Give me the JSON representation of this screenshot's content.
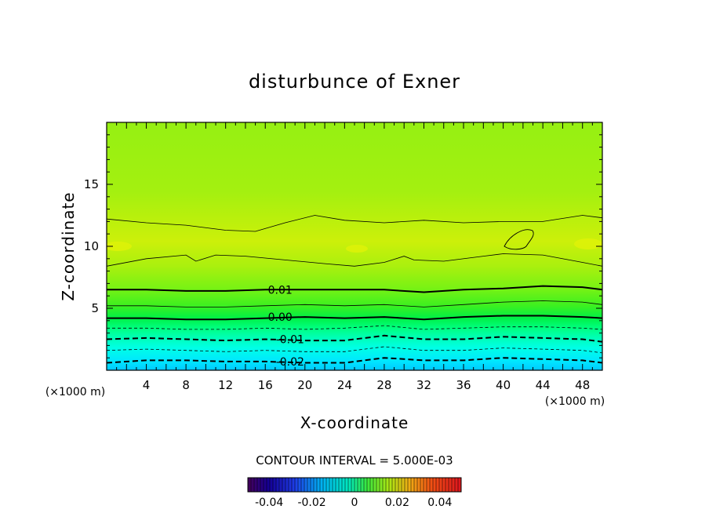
{
  "chart_data": {
    "type": "heatmap",
    "subtype": "filled contour",
    "title": "disturbunce of Exner",
    "xlabel": "X-coordinate",
    "ylabel": "Z-coordinate",
    "x_unit": "(×1000 m)",
    "y_unit": "(×1000 m)",
    "xlim": [
      0,
      50
    ],
    "ylim": [
      0,
      20
    ],
    "x_ticks": [
      4,
      8,
      12,
      16,
      20,
      24,
      28,
      32,
      36,
      40,
      44,
      48
    ],
    "y_ticks": [
      5,
      10,
      15
    ],
    "contour_interval_label": "CONTOUR INTERVAL = 5.000E-03",
    "contour_labels": [
      {
        "text": "0.01",
        "x": 17.5,
        "z": 6.5
      },
      {
        "text": "0.00",
        "x": 17.5,
        "z": 4.3
      },
      {
        "text": "-0.01",
        "x": 18.5,
        "z": 2.5
      },
      {
        "text": "-0.02",
        "x": 18.5,
        "z": 0.7
      }
    ],
    "contours": [
      {
        "level": 0.015,
        "style": "thin",
        "x": [
          0,
          4,
          8,
          12,
          15,
          18,
          21,
          24,
          28,
          32,
          36,
          40,
          44,
          48,
          50
        ],
        "z": [
          12.2,
          11.9,
          11.7,
          11.3,
          11.2,
          11.9,
          12.5,
          12.1,
          11.9,
          12.1,
          11.9,
          12.0,
          12.0,
          12.5,
          12.3
        ]
      },
      {
        "level": 0.015,
        "style": "thin",
        "x": [
          0,
          4,
          8,
          9,
          11,
          14,
          18,
          22,
          25,
          28,
          30,
          31,
          34,
          38,
          40,
          44,
          48,
          50
        ],
        "z": [
          8.4,
          9.0,
          9.3,
          8.8,
          9.3,
          9.2,
          8.9,
          8.6,
          8.4,
          8.7,
          9.2,
          8.9,
          8.8,
          9.2,
          9.4,
          9.3,
          8.7,
          8.4
        ]
      },
      {
        "level": 0.01,
        "style": "bold",
        "x": [
          0,
          4,
          8,
          12,
          16,
          20,
          24,
          28,
          32,
          36,
          40,
          44,
          48,
          50
        ],
        "z": [
          6.5,
          6.5,
          6.4,
          6.4,
          6.5,
          6.5,
          6.5,
          6.5,
          6.3,
          6.5,
          6.6,
          6.8,
          6.7,
          6.5
        ]
      },
      {
        "level": 0.005,
        "style": "thin",
        "x": [
          0,
          4,
          8,
          12,
          16,
          20,
          24,
          28,
          32,
          36,
          40,
          44,
          48,
          50
        ],
        "z": [
          5.2,
          5.2,
          5.1,
          5.1,
          5.2,
          5.3,
          5.2,
          5.3,
          5.1,
          5.3,
          5.5,
          5.6,
          5.5,
          5.3
        ]
      },
      {
        "level": 0.0,
        "style": "bold",
        "x": [
          0,
          4,
          8,
          12,
          16,
          20,
          24,
          28,
          32,
          36,
          40,
          44,
          48,
          50
        ],
        "z": [
          4.2,
          4.2,
          4.1,
          4.1,
          4.2,
          4.3,
          4.2,
          4.3,
          4.1,
          4.3,
          4.4,
          4.4,
          4.3,
          4.2
        ]
      },
      {
        "level": -0.005,
        "style": "dashed",
        "x": [
          0,
          4,
          8,
          12,
          16,
          20,
          24,
          28,
          32,
          36,
          40,
          44,
          48,
          50
        ],
        "z": [
          3.4,
          3.4,
          3.3,
          3.3,
          3.4,
          3.3,
          3.4,
          3.6,
          3.3,
          3.4,
          3.5,
          3.5,
          3.4,
          3.3
        ]
      },
      {
        "level": -0.01,
        "style": "dashed-bold",
        "x": [
          0,
          4,
          8,
          12,
          16,
          20,
          24,
          28,
          32,
          36,
          40,
          44,
          48,
          50
        ],
        "z": [
          2.5,
          2.6,
          2.5,
          2.4,
          2.5,
          2.4,
          2.4,
          2.8,
          2.5,
          2.5,
          2.7,
          2.6,
          2.5,
          2.3
        ]
      },
      {
        "level": -0.015,
        "style": "dashed",
        "x": [
          0,
          4,
          8,
          12,
          16,
          20,
          24,
          28,
          32,
          36,
          40,
          44,
          48,
          50
        ],
        "z": [
          1.6,
          1.7,
          1.6,
          1.5,
          1.6,
          1.5,
          1.5,
          1.9,
          1.6,
          1.6,
          1.8,
          1.7,
          1.6,
          1.4
        ]
      },
      {
        "level": -0.02,
        "style": "dashed-bold",
        "x": [
          0,
          4,
          8,
          12,
          16,
          20,
          24,
          28,
          32,
          36,
          40,
          44,
          48,
          50
        ],
        "z": [
          0.6,
          0.8,
          0.8,
          0.7,
          0.7,
          0.6,
          0.6,
          1.0,
          0.8,
          0.8,
          1.0,
          0.9,
          0.8,
          0.6
        ]
      }
    ],
    "colorbar": {
      "ticks": [
        "-0.04",
        "-0.02",
        "0",
        "0.02",
        "0.04"
      ],
      "tick_values": [
        -0.04,
        -0.02,
        0,
        0.02,
        0.04
      ],
      "range": [
        -0.05,
        0.05
      ]
    }
  }
}
